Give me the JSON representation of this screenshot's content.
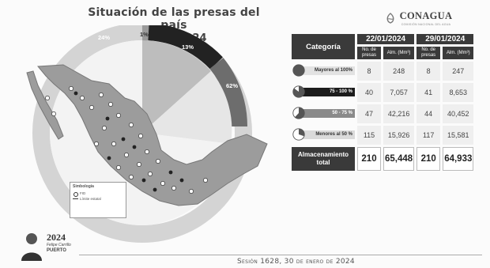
{
  "header": {
    "title_line1": "Situación de las presas del país",
    "title_line2": "29-01-2024"
  },
  "logo": {
    "name": "CONAGUA",
    "tagline": "COMISIÓN NACIONAL DEL AGUA"
  },
  "map": {
    "legend_title": "Simbología",
    "legend_items": [
      "FID",
      "Límite estatal"
    ],
    "ring_labels": [
      "24%",
      "1%",
      "13%",
      "62%"
    ]
  },
  "table": {
    "category_header": "Categoría",
    "dates": [
      "22/01/2024",
      "29/01/2024"
    ],
    "sub_no": "No. de presas",
    "sub_alm": "Alm. (Mm³)",
    "rows": [
      {
        "label": "Mayores al 100%",
        "fill": 1.0,
        "bar_color": "#e2e2e2",
        "text_color": "#333",
        "v": [
          "8",
          "248",
          "8",
          "247"
        ]
      },
      {
        "label": "75 - 100 %",
        "fill": 0.85,
        "bar_color": "#1c1c1c",
        "text_color": "#fff",
        "v": [
          "40",
          "7,057",
          "41",
          "8,653"
        ]
      },
      {
        "label": "50 - 75 %",
        "fill": 0.62,
        "bar_color": "#8a8a8a",
        "text_color": "#fff",
        "v": [
          "47",
          "42,216",
          "44",
          "40,452"
        ]
      },
      {
        "label": "Menores al 50 %",
        "fill": 0.3,
        "bar_color": "#dadada",
        "text_color": "#333",
        "v": [
          "115",
          "15,926",
          "117",
          "15,581"
        ]
      }
    ],
    "total": {
      "label_line1": "Almacenamiento",
      "label_line2": "total",
      "v": [
        "210",
        "65,448",
        "210",
        "64,933"
      ]
    }
  },
  "footer": {
    "text": "Sesión 1628, 30 de enero de 2024"
  },
  "signature": {
    "year": "2024",
    "name": "Felipe Carrillo",
    "place": "PUERTO"
  },
  "colors": {
    "dark": "#3a3a3a",
    "ring_light": "#d4d4d4",
    "ring_dark": "#222222",
    "ring_mid": "#6d6d6d"
  }
}
